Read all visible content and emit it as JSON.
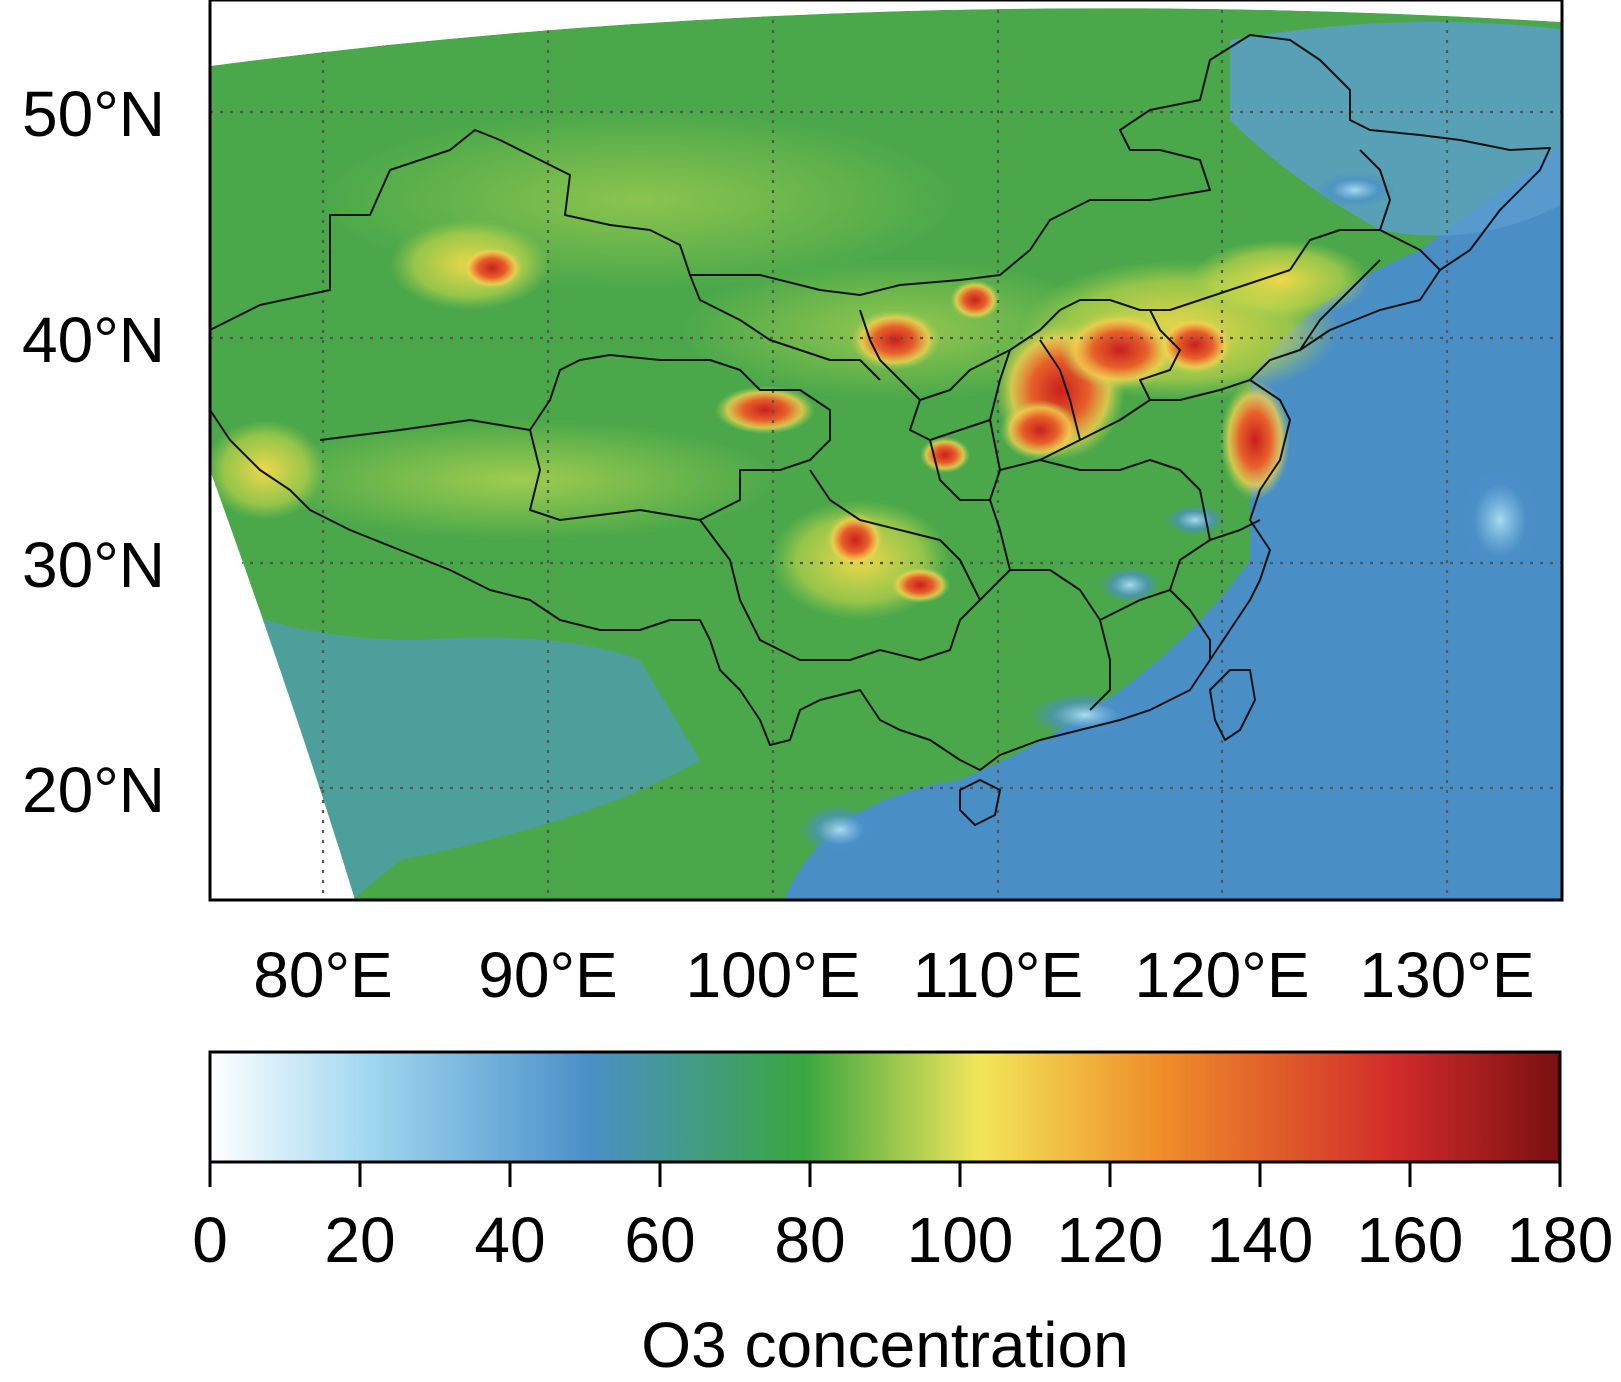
{
  "map": {
    "lat_labels": [
      "50°N",
      "40°N",
      "30°N",
      "20°N"
    ],
    "lon_labels": [
      "80°E",
      "90°E",
      "100°E",
      "110°E",
      "120°E",
      "130°E"
    ],
    "region": "China and surroundings",
    "gridlines": "dotted",
    "colors": {
      "background": "#4aa84a",
      "ocean": "#4a90c8",
      "hotspot": "#d93a2a",
      "border": "#111111"
    }
  },
  "colorbar": {
    "label": "O3 concentration",
    "ticks": [
      "0",
      "20",
      "40",
      "60",
      "80",
      "100",
      "120",
      "140",
      "160",
      "180"
    ],
    "range": [
      0,
      180
    ],
    "colors": [
      "#ffffff",
      "#9fd6f0",
      "#4a90c8",
      "#3aa640",
      "#f2e65a",
      "#f0902a",
      "#d12a2a",
      "#7a1010"
    ]
  }
}
